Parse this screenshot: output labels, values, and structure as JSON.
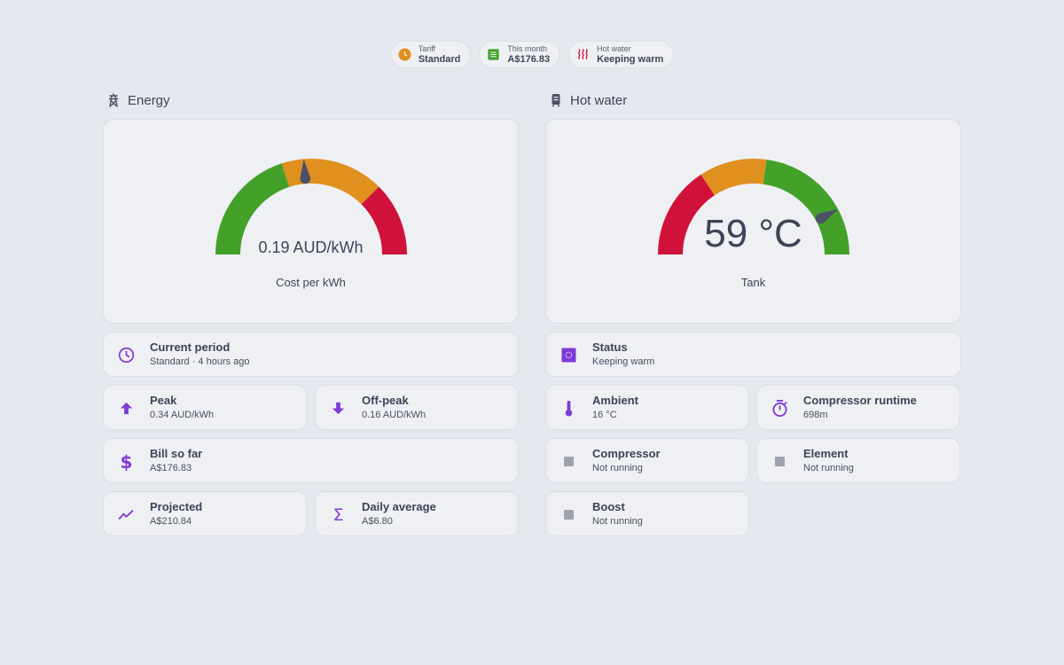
{
  "chips": [
    {
      "label": "Tariff",
      "value": "Standard",
      "icon": "clock-icon",
      "color": "#e0901f"
    },
    {
      "label": "This month",
      "value": "A$176.83",
      "icon": "receipt-icon",
      "color": "#43a12a"
    },
    {
      "label": "Hot water",
      "value": "Keeping warm",
      "icon": "heat-waves-icon",
      "color": "#d0123a"
    }
  ],
  "energy": {
    "title": "Energy",
    "icon": "transmission-tower-icon",
    "gauge": {
      "value_text": "0.19 AUD/kWh",
      "subtitle": "Cost per kWh",
      "value": 0.19,
      "min": 0,
      "max": 0.4,
      "segments": [
        {
          "from": 0,
          "to": 0.16,
          "color": "#43a12a"
        },
        {
          "from": 0.16,
          "to": 0.3,
          "color": "#e0901f"
        },
        {
          "from": 0.3,
          "to": 0.4,
          "color": "#d0123a"
        }
      ]
    },
    "current_period": {
      "name": "Current period",
      "state": "Standard · 4 hours ago",
      "icon": "clock-outline-icon"
    },
    "peak": {
      "name": "Peak",
      "state": "0.34 AUD/kWh",
      "icon": "arrow-up-icon"
    },
    "offpeak": {
      "name": "Off-peak",
      "state": "0.16 AUD/kWh",
      "icon": "arrow-down-icon"
    },
    "bill": {
      "name": "Bill so far",
      "state": "A$176.83",
      "icon": "dollar-icon"
    },
    "projected": {
      "name": "Projected",
      "state": "A$210.84",
      "icon": "trend-line-icon"
    },
    "daily": {
      "name": "Daily average",
      "state": "A$6.80",
      "icon": "sigma-icon"
    }
  },
  "hotwater": {
    "title": "Hot water",
    "icon": "water-heater-icon",
    "gauge": {
      "value_text": "59 °C",
      "subtitle": "Tank",
      "value": 59,
      "min": 0,
      "max": 70,
      "segments": [
        {
          "from": 0,
          "to": 22,
          "color": "#d0123a"
        },
        {
          "from": 22,
          "to": 38,
          "color": "#e0901f"
        },
        {
          "from": 38,
          "to": 70,
          "color": "#43a12a"
        }
      ]
    },
    "status": {
      "name": "Status",
      "state": "Keeping warm",
      "icon": "status-chip-icon"
    },
    "ambient": {
      "name": "Ambient",
      "state": "16 °C",
      "icon": "thermometer-icon"
    },
    "runtime": {
      "name": "Compressor runtime",
      "state": "698m",
      "icon": "timer-icon"
    },
    "compressor": {
      "name": "Compressor",
      "state": "Not running",
      "icon": "square-icon"
    },
    "element": {
      "name": "Element",
      "state": "Not running",
      "icon": "square-icon"
    },
    "boost": {
      "name": "Boost",
      "state": "Not running",
      "icon": "square-icon"
    }
  },
  "colors": {
    "accent": "#7e3bd6",
    "inactive": "#9fa2ad",
    "needle": "#4c5066"
  }
}
